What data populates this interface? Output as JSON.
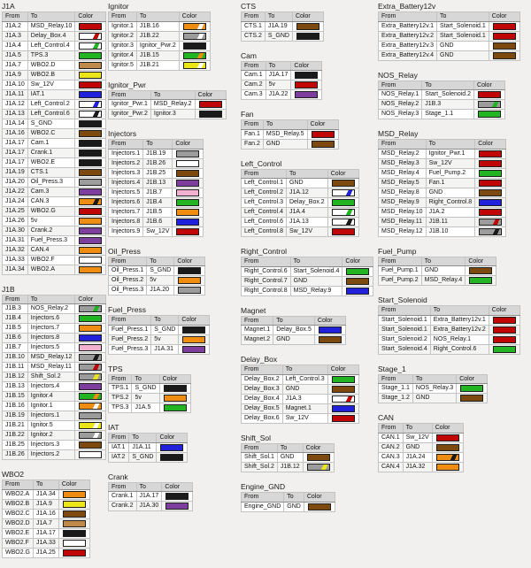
{
  "headers": [
    "From",
    "To",
    "Color"
  ],
  "palette": {
    "red": "#c00505",
    "green": "#22b422",
    "orange": "#ef8d12",
    "yellow": "#ece619",
    "blue": "#2121dc",
    "purple": "#7d3e9e",
    "pink": "#f2b1ce",
    "brown": "#7c4a0e",
    "tan": "#bf8a49",
    "gray": "#9c9c9c",
    "black": "#1a1a1a",
    "white": "#ffffff"
  },
  "columns": [
    {
      "tables": [
        {
          "title": "J1A",
          "rows": [
            [
              "J1A.2",
              "MSD_Relay.10",
              "red"
            ],
            [
              "J1A.3",
              "Delay_Box.4",
              "white|red"
            ],
            [
              "J1A.4",
              "Left_Control.4",
              "white|green"
            ],
            [
              "J1A.5",
              "TPS.3",
              "green"
            ],
            [
              "J1A.7",
              "WBO2.D",
              "tan"
            ],
            [
              "J1A.9",
              "WBO2.B",
              "yellow"
            ],
            [
              "J1A.10",
              "Sw_12V",
              "red"
            ],
            [
              "J1A.11",
              "IAT.1",
              "blue"
            ],
            [
              "J1A.12",
              "Left_Control.2",
              "white|blue"
            ],
            [
              "J1A.13",
              "Left_Control.6",
              "white|black"
            ],
            [
              "J1A.14",
              "S_GND",
              "black"
            ],
            [
              "J1A.16",
              "WBO2.C",
              "brown"
            ],
            [
              "J1A.17",
              "Cam.1",
              "black"
            ],
            [
              "J1A.17",
              "Crank.1",
              "black"
            ],
            [
              "J1A.17",
              "WBO2.E",
              "black"
            ],
            [
              "J1A.19",
              "CTS.1",
              "brown"
            ],
            [
              "J1A.20",
              "Oil_Press.3",
              "gray"
            ],
            [
              "J1A.22",
              "Cam.3",
              "purple"
            ],
            [
              "J1A.24",
              "CAN.3",
              "orange|black"
            ],
            [
              "J1A.25",
              "WBO2.G",
              "red"
            ],
            [
              "J1A.26",
              "5v",
              "orange"
            ],
            [
              "J1A.30",
              "Crank.2",
              "purple"
            ],
            [
              "J1A.31",
              "Fuel_Press.3",
              "purple"
            ],
            [
              "J1A.32",
              "CAN.4",
              "orange"
            ],
            [
              "J1A.33",
              "WBO2.F",
              "white"
            ],
            [
              "J1A.34",
              "WBO2.A",
              "orange"
            ]
          ]
        },
        {
          "title": "J1B",
          "rows": [
            [
              "J1B.3",
              "NOS_Relay.2",
              "gray|green"
            ],
            [
              "J1B.4",
              "Injectors.6",
              "green"
            ],
            [
              "J1B.5",
              "Injectors.7",
              "orange"
            ],
            [
              "J1B.6",
              "Injectors.8",
              "blue"
            ],
            [
              "J1B.7",
              "Injectors.5",
              "pink"
            ],
            [
              "J1B.10",
              "MSD_Relay.12",
              "gray|black"
            ],
            [
              "J1B.11",
              "MSD_Relay.11",
              "gray|red"
            ],
            [
              "J1B.12",
              "Shift_Sol.2",
              "gray|yellow"
            ],
            [
              "J1B.13",
              "Injectors.4",
              "purple"
            ],
            [
              "J1B.15",
              "Ignitor.4",
              "green|orange"
            ],
            [
              "J1B.16",
              "Ignitor.1",
              "orange|white"
            ],
            [
              "J1B.19",
              "Injectors.1",
              "gray"
            ],
            [
              "J1B.21",
              "Ignitor.5",
              "yellow|white"
            ],
            [
              "J1B.22",
              "Ignitor.2",
              "gray|white"
            ],
            [
              "J1B.25",
              "Injectors.3",
              "brown"
            ],
            [
              "J1B.26",
              "Injectors.2",
              "white"
            ]
          ]
        },
        {
          "title": "WBO2",
          "rows": [
            [
              "WBO2.A",
              "J1A.34",
              "orange"
            ],
            [
              "WBO2.B",
              "J1A.9",
              "yellow"
            ],
            [
              "WBO2.C",
              "J1A.16",
              "brown"
            ],
            [
              "WBO2.D",
              "J1A.7",
              "tan"
            ],
            [
              "WBO2.E",
              "J1A.17",
              "black"
            ],
            [
              "WBO2.F",
              "J1A.33",
              "white"
            ],
            [
              "WBO2.G",
              "J1A.25",
              "red"
            ]
          ]
        }
      ]
    },
    {
      "tables": [
        {
          "title": "Ignitor",
          "rows": [
            [
              "Ignitor.1",
              "J1B.16",
              "orange|white"
            ],
            [
              "Ignitor.2",
              "J1B.22",
              "gray|white"
            ],
            [
              "Ignitor.3",
              "Ignitor_Pwr.2",
              "black"
            ],
            [
              "Ignitor.4",
              "J1B.15",
              "green|orange"
            ],
            [
              "Ignitor.5",
              "J1B.21",
              "yellow|white"
            ]
          ]
        },
        {
          "title": "Ignitor_Pwr",
          "rows": [
            [
              "Ignitor_Pwr.1",
              "MSD_Relay.2",
              "red"
            ],
            [
              "Ignitor_Pwr.2",
              "Ignitor.3",
              "black"
            ]
          ]
        },
        {
          "title": "Injectors",
          "rows": [
            [
              "Injectors.1",
              "J1B.19",
              "gray"
            ],
            [
              "Injectors.2",
              "J1B.26",
              "white"
            ],
            [
              "Injectors.3",
              "J1B.25",
              "brown"
            ],
            [
              "Injectors.4",
              "J1B.13",
              "purple"
            ],
            [
              "Injectors.5",
              "J1B.7",
              "pink"
            ],
            [
              "Injectors.6",
              "J1B.4",
              "green"
            ],
            [
              "Injectors.7",
              "J1B.5",
              "orange"
            ],
            [
              "Injectors.8",
              "J1B.6",
              "blue"
            ],
            [
              "Injectors.9",
              "Sw_12V",
              "red"
            ]
          ]
        },
        {
          "title": "Oil_Press",
          "rows": [
            [
              "Oil_Press.1",
              "S_GND",
              "black"
            ],
            [
              "Oil_Press.2",
              "5v",
              "orange"
            ],
            [
              "Oil_Press.3",
              "J1A.20",
              "gray"
            ]
          ]
        },
        {
          "title": "Fuel_Press",
          "rows": [
            [
              "Fuel_Press.1",
              "S_GND",
              "black"
            ],
            [
              "Fuel_Press.2",
              "5v",
              "orange"
            ],
            [
              "Fuel_Press.3",
              "J1A.31",
              "purple"
            ]
          ]
        },
        {
          "title": "TPS",
          "rows": [
            [
              "TPS.1",
              "S_GND",
              "black"
            ],
            [
              "TPS.2",
              "5v",
              "orange"
            ],
            [
              "TPS.3",
              "J1A.5",
              "green"
            ]
          ]
        },
        {
          "title": "IAT",
          "rows": [
            [
              "IAT.1",
              "J1A.11",
              "blue"
            ],
            [
              "IAT.2",
              "S_GND",
              "black"
            ]
          ]
        },
        {
          "title": "Crank",
          "rows": [
            [
              "Crank.1",
              "J1A.17",
              "black"
            ],
            [
              "Crank.2",
              "J1A.30",
              "purple"
            ]
          ]
        }
      ]
    },
    {
      "tables": [
        {
          "title": "CTS",
          "rows": [
            [
              "CTS.1",
              "J1A.19",
              "brown"
            ],
            [
              "CTS.2",
              "S_GND",
              "black"
            ]
          ]
        },
        {
          "title": "Cam",
          "rows": [
            [
              "Cam.1",
              "J1A.17",
              "black"
            ],
            [
              "Cam.2",
              "5v",
              "red"
            ],
            [
              "Cam.3",
              "J1A.22",
              "purple"
            ]
          ]
        },
        {
          "title": "Fan",
          "rows": [
            [
              "Fan.1",
              "MSD_Relay.5",
              "red"
            ],
            [
              "Fan.2",
              "GND",
              "brown"
            ]
          ]
        },
        {
          "title": "Left_Control",
          "rows": [
            [
              "Left_Control.1",
              "GND",
              "brown"
            ],
            [
              "Left_Control.2",
              "J1A.12",
              "white|blue"
            ],
            [
              "Left_Control.3",
              "Delay_Box.2",
              "green"
            ],
            [
              "Left_Control.4",
              "J1A.4",
              "white|green"
            ],
            [
              "Left_Control.6",
              "J1A.13",
              "white|black"
            ],
            [
              "Left_Control.8",
              "Sw_12V",
              "red"
            ]
          ]
        },
        {
          "title": "Right_Control",
          "rows": [
            [
              "Right_Control.6",
              "Start_Solenoid.4",
              "green"
            ],
            [
              "Right_Control.7",
              "GND",
              "brown"
            ],
            [
              "Right_Control.8",
              "MSD_Relay.9",
              "blue"
            ]
          ]
        },
        {
          "title": "Magnet",
          "rows": [
            [
              "Magnet.1",
              "Delay_Box.5",
              "blue"
            ],
            [
              "Magnet.2",
              "GND",
              "brown"
            ]
          ]
        },
        {
          "title": "Delay_Box",
          "rows": [
            [
              "Delay_Box.2",
              "Left_Control.3",
              "green"
            ],
            [
              "Delay_Box.3",
              "GND",
              "brown"
            ],
            [
              "Delay_Box.4",
              "J1A.3",
              "white|red"
            ],
            [
              "Delay_Box.5",
              "Magnet.1",
              "blue"
            ],
            [
              "Delay_Box.6",
              "Sw_12V",
              "red"
            ]
          ]
        },
        {
          "title": "Shift_Sol",
          "rows": [
            [
              "Shift_Sol.1",
              "GND",
              "brown"
            ],
            [
              "Shift_Sol.2",
              "J1B.12",
              "gray|yellow"
            ]
          ]
        },
        {
          "title": "Engine_GND",
          "rows": [
            [
              "Engine_GND",
              "GND",
              "brown"
            ]
          ]
        }
      ]
    },
    {
      "tables": [
        {
          "title": "Extra_Battery12v",
          "rows": [
            [
              "Extra_Battery12v.1",
              "Start_Solenoid.1",
              "red"
            ],
            [
              "Extra_Battery12v.2",
              "Start_Solenoid.1",
              "red"
            ],
            [
              "Extra_Battery12v.3",
              "GND",
              "brown"
            ],
            [
              "Extra_Battery12v.4",
              "GND",
              "brown"
            ]
          ]
        },
        {
          "title": "NOS_Relay",
          "rows": [
            [
              "NOS_Relay.1",
              "Start_Solenoid.2",
              "red"
            ],
            [
              "NOS_Relay.2",
              "J1B.3",
              "gray|green"
            ],
            [
              "NOS_Relay.3",
              "Stage_1.1",
              "green"
            ]
          ]
        },
        {
          "title": "MSD_Relay",
          "rows": [
            [
              "MSD_Relay.2",
              "Ignitor_Pwr.1",
              "red"
            ],
            [
              "MSD_Relay.3",
              "Sw_12V",
              "red"
            ],
            [
              "MSD_Relay.4",
              "Fuel_Pump.2",
              "green"
            ],
            [
              "MSD_Relay.5",
              "Fan.1",
              "red"
            ],
            [
              "MSD_Relay.8",
              "GND",
              "brown"
            ],
            [
              "MSD_Relay.9",
              "Right_Control.8",
              "blue"
            ],
            [
              "MSD_Relay.10",
              "J1A.2",
              "red"
            ],
            [
              "MSD_Relay.11",
              "J1B.11",
              "gray|red"
            ],
            [
              "MSD_Relay.12",
              "J1B.10",
              "gray|black"
            ]
          ]
        },
        {
          "title": "Fuel_Pump",
          "rows": [
            [
              "Fuel_Pump.1",
              "GND",
              "brown"
            ],
            [
              "Fuel_Pump.2",
              "MSD_Relay.4",
              "green"
            ]
          ]
        },
        {
          "title": "Start_Solenoid",
          "rows": [
            [
              "Start_Solenoid.1",
              "Extra_Battery12v.1",
              "red"
            ],
            [
              "Start_Solenoid.1",
              "Extra_Battery12v.2",
              "red"
            ],
            [
              "Start_Solenoid.2",
              "NOS_Relay.1",
              "red"
            ],
            [
              "Start_Solenoid.4",
              "Right_Control.6",
              "green"
            ]
          ]
        },
        {
          "title": "Stage_1",
          "rows": [
            [
              "Stage_1.1",
              "NOS_Relay.3",
              "green"
            ],
            [
              "Stage_1.2",
              "GND",
              "brown"
            ]
          ]
        },
        {
          "title": "CAN",
          "rows": [
            [
              "CAN.1",
              "Sw_12V",
              "red"
            ],
            [
              "CAN.2",
              "GND",
              "brown"
            ],
            [
              "CAN.3",
              "J1A.24",
              "orange|black"
            ],
            [
              "CAN.4",
              "J1A.32",
              "orange"
            ]
          ]
        }
      ]
    }
  ]
}
